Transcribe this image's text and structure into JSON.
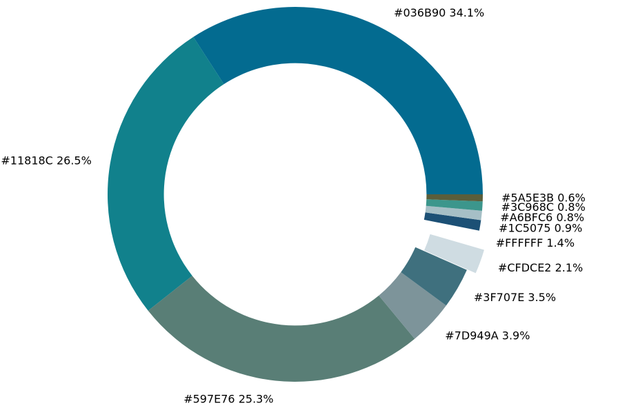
{
  "chart_data": {
    "type": "donut",
    "categories": [
      "#036B90",
      "#11818C",
      "#597E76",
      "#7D949A",
      "#3F707E",
      "#CFDCE2",
      "#FFFFFF",
      "#1C5075",
      "#A6BFC6",
      "#3C968C",
      "#5A5E3B"
    ],
    "values": [
      34.1,
      26.5,
      25.3,
      3.9,
      3.5,
      2.1,
      1.4,
      0.9,
      0.8,
      0.8,
      0.6
    ],
    "value_labels": [
      "34.1%",
      "26.5%",
      "25.3%",
      "3.9%",
      "3.5%",
      "2.1%",
      "1.4%",
      "0.9%",
      "0.8%",
      "0.8%",
      "0.6%"
    ],
    "colors": [
      "#036B90",
      "#11818C",
      "#597E76",
      "#7D949A",
      "#3F707E",
      "#CFDCE2",
      "#FFFFFF",
      "#1C5075",
      "#A6BFC6",
      "#3C968C",
      "#5A5E3B"
    ],
    "explode": [
      0,
      0,
      0,
      0,
      0,
      0.05,
      0,
      0,
      0,
      0,
      0
    ],
    "start_angle": 0,
    "counterclock": true
  }
}
